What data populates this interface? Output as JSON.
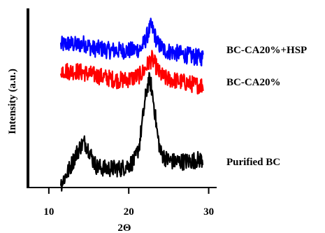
{
  "chart_data": {
    "type": "line",
    "xlabel": "2Θ",
    "ylabel": "Intensity (a.u.)",
    "xlim": [
      8,
      31
    ],
    "x_ticks": [
      10,
      20,
      30
    ],
    "y_ticks_shown": false,
    "grid": false,
    "legend": "inline-right",
    "series": [
      {
        "name": "BC-CA20%+HSP",
        "color": "#0000ff",
        "points": [
          [
            11.5,
            8.2
          ],
          [
            12.5,
            8.3
          ],
          [
            13.5,
            8.2
          ],
          [
            14.5,
            8.3
          ],
          [
            15.5,
            8.0
          ],
          [
            16.5,
            8.0
          ],
          [
            17.5,
            7.9
          ],
          [
            18.5,
            7.9
          ],
          [
            19.5,
            7.9
          ],
          [
            20.5,
            7.9
          ],
          [
            21.5,
            8.0
          ],
          [
            22.0,
            8.4
          ],
          [
            22.5,
            9.0
          ],
          [
            22.8,
            9.3
          ],
          [
            23.1,
            9.0
          ],
          [
            23.6,
            8.3
          ],
          [
            24.5,
            7.9
          ],
          [
            25.5,
            7.8
          ],
          [
            26.5,
            7.7
          ],
          [
            27.5,
            7.6
          ],
          [
            28.5,
            7.5
          ],
          [
            29.3,
            7.5
          ]
        ]
      },
      {
        "name": "BC-CA20%",
        "color": "#ff0000",
        "points": [
          [
            11.5,
            6.8
          ],
          [
            12.5,
            6.7
          ],
          [
            13.5,
            6.7
          ],
          [
            14.5,
            6.6
          ],
          [
            15.5,
            6.5
          ],
          [
            16.5,
            6.4
          ],
          [
            17.5,
            6.3
          ],
          [
            18.5,
            6.2
          ],
          [
            19.5,
            6.2
          ],
          [
            20.5,
            6.3
          ],
          [
            21.5,
            6.5
          ],
          [
            22.0,
            6.8
          ],
          [
            22.5,
            7.2
          ],
          [
            22.9,
            7.4
          ],
          [
            23.3,
            7.1
          ],
          [
            23.8,
            6.6
          ],
          [
            24.5,
            6.3
          ],
          [
            25.5,
            6.2
          ],
          [
            26.5,
            6.1
          ],
          [
            27.5,
            6.0
          ],
          [
            28.5,
            5.9
          ],
          [
            29.3,
            5.9
          ]
        ]
      },
      {
        "name": "Purified BC",
        "color": "#000000",
        "points": [
          [
            11.5,
            0.2
          ],
          [
            12.0,
            0.6
          ],
          [
            12.5,
            1.0
          ],
          [
            13.0,
            1.5
          ],
          [
            13.5,
            2.0
          ],
          [
            14.0,
            2.4
          ],
          [
            14.5,
            2.6
          ],
          [
            15.0,
            2.2
          ],
          [
            15.5,
            1.6
          ],
          [
            16.0,
            1.2
          ],
          [
            17.0,
            1.1
          ],
          [
            18.0,
            1.1
          ],
          [
            19.0,
            1.1
          ],
          [
            20.0,
            1.3
          ],
          [
            20.8,
            1.6
          ],
          [
            21.3,
            2.4
          ],
          [
            21.7,
            3.8
          ],
          [
            22.1,
            5.2
          ],
          [
            22.5,
            6.2
          ],
          [
            22.8,
            5.9
          ],
          [
            23.2,
            4.6
          ],
          [
            23.6,
            3.0
          ],
          [
            24.0,
            2.0
          ],
          [
            24.8,
            1.6
          ],
          [
            25.5,
            1.5
          ],
          [
            26.5,
            1.5
          ],
          [
            27.5,
            1.5
          ],
          [
            28.5,
            1.6
          ],
          [
            29.3,
            1.6
          ]
        ]
      }
    ]
  }
}
